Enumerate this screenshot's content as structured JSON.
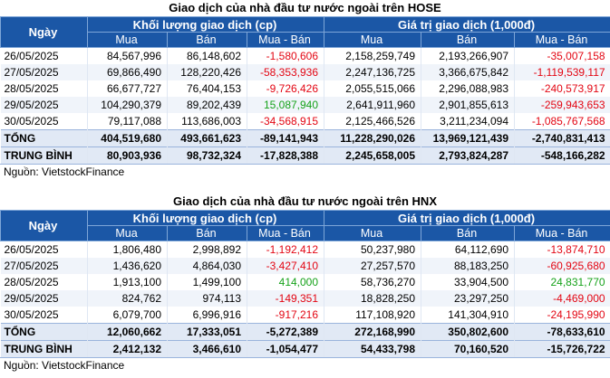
{
  "hose": {
    "title": "Giao dịch của nhà đầu tư nước ngoài trên HOSE",
    "header": {
      "day": "Ngày",
      "volume_group": "Khối lượng giao dịch (cp)",
      "value_group": "Giá trị giao dịch (1,000đ)",
      "buy": "Mua",
      "sell": "Bán",
      "net": "Mua - Bán"
    },
    "rows": [
      {
        "date": "26/05/2025",
        "vb": "84,567,996",
        "vs": "86,148,602",
        "vn": "-1,580,606",
        "gb": "2,158,259,749",
        "gs": "2,193,266,907",
        "gn": "-35,007,158"
      },
      {
        "date": "27/05/2025",
        "vb": "69,866,490",
        "vs": "128,220,426",
        "vn": "-58,353,936",
        "gb": "2,247,136,725",
        "gs": "3,366,675,842",
        "gn": "-1,119,539,117"
      },
      {
        "date": "28/05/2025",
        "vb": "66,677,727",
        "vs": "76,404,153",
        "vn": "-9,726,426",
        "gb": "2,055,515,066",
        "gs": "2,296,088,983",
        "gn": "-240,573,917"
      },
      {
        "date": "29/05/2025",
        "vb": "104,290,379",
        "vs": "89,202,439",
        "vn": "15,087,940",
        "gb": "2,641,911,960",
        "gs": "2,901,855,613",
        "gn": "-259,943,653"
      },
      {
        "date": "30/05/2025",
        "vb": "79,117,088",
        "vs": "113,686,003",
        "vn": "-34,568,915",
        "gb": "2,125,466,526",
        "gs": "3,211,234,094",
        "gn": "-1,085,767,568"
      }
    ],
    "total": {
      "label": "TỔNG",
      "vb": "404,519,680",
      "vs": "493,661,623",
      "vn": "-89,141,943",
      "gb": "11,228,290,026",
      "gs": "13,969,121,439",
      "gn": "-2,740,831,413"
    },
    "average": {
      "label": "TRUNG BÌNH",
      "vb": "80,903,936",
      "vs": "98,732,324",
      "vn": "-17,828,388",
      "gb": "2,245,658,005",
      "gs": "2,793,824,287",
      "gn": "-548,166,282"
    },
    "source": "Nguồn: VietstockFinance"
  },
  "hnx": {
    "title": "Giao dịch của nhà đầu tư nước ngoài trên HNX",
    "header": {
      "day": "Ngày",
      "volume_group": "Khối lượng giao dịch (cp)",
      "value_group": "Giá trị giao dịch (1,000đ)",
      "buy": "Mua",
      "sell": "Bán",
      "net": "Mua - Bán"
    },
    "rows": [
      {
        "date": "26/05/2025",
        "vb": "1,806,480",
        "vs": "2,998,892",
        "vn": "-1,192,412",
        "gb": "50,237,980",
        "gs": "64,112,690",
        "gn": "-13,874,710"
      },
      {
        "date": "27/05/2025",
        "vb": "1,436,620",
        "vs": "4,864,030",
        "vn": "-3,427,410",
        "gb": "27,257,570",
        "gs": "88,183,250",
        "gn": "-60,925,680"
      },
      {
        "date": "28/05/2025",
        "vb": "1,913,100",
        "vs": "1,499,100",
        "vn": "414,000",
        "gb": "58,736,270",
        "gs": "33,904,500",
        "gn": "24,831,770"
      },
      {
        "date": "29/05/2025",
        "vb": "824,762",
        "vs": "974,113",
        "vn": "-149,351",
        "gb": "18,828,250",
        "gs": "23,297,250",
        "gn": "-4,469,000"
      },
      {
        "date": "30/05/2025",
        "vb": "6,079,700",
        "vs": "6,996,916",
        "vn": "-917,216",
        "gb": "117,108,920",
        "gs": "141,304,910",
        "gn": "-24,195,990"
      }
    ],
    "total": {
      "label": "TỔNG",
      "vb": "12,060,662",
      "vs": "17,333,051",
      "vn": "-5,272,389",
      "gb": "272,168,990",
      "gs": "350,802,600",
      "gn": "-78,633,610"
    },
    "average": {
      "label": "TRUNG BÌNH",
      "vb": "2,412,132",
      "vs": "3,466,610",
      "vn": "-1,054,477",
      "gb": "54,433,798",
      "gs": "70,160,520",
      "gn": "-15,726,722"
    },
    "source": "Nguồn: VietstockFinance"
  },
  "colors": {
    "header_bg": "#1b57a6",
    "negative": "#e30613",
    "positive": "#16a21a",
    "summary_bg": "#e1e9f5",
    "stripe": "#f0f4fa"
  }
}
